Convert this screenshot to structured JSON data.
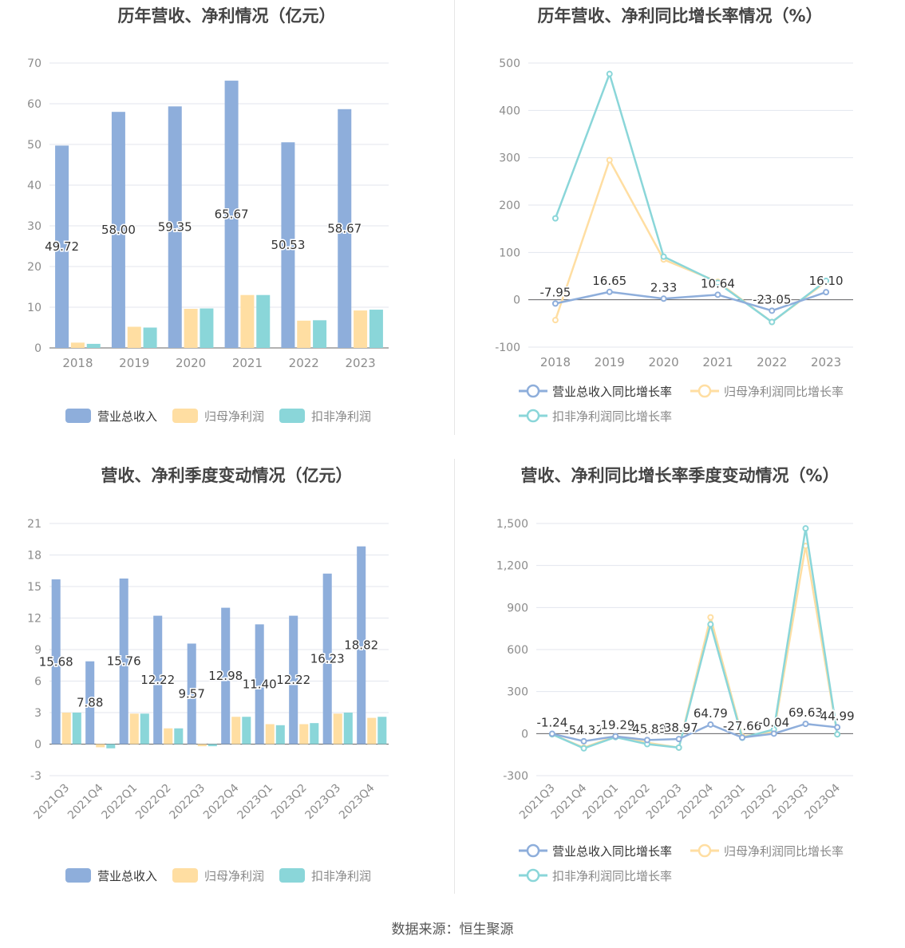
{
  "footer": {
    "source": "数据来源：恒生聚源"
  },
  "colors": {
    "revenue": "#8EAEDB",
    "net_profit": "#FFDEA2",
    "deducted_profit": "#8AD6D9"
  },
  "chart_data": [
    {
      "id": "annual_amount",
      "type": "bar",
      "title": "历年营收、净利情况（亿元）",
      "categories": [
        "2018",
        "2019",
        "2020",
        "2021",
        "2022",
        "2023"
      ],
      "ylim": [
        0,
        70
      ],
      "yticks": [
        0,
        10,
        20,
        30,
        40,
        50,
        60,
        70
      ],
      "label_series": 0,
      "series": [
        {
          "name": "营业总收入",
          "color": "#8EAEDB",
          "values": [
            49.72,
            58.0,
            59.35,
            65.67,
            50.53,
            58.67
          ]
        },
        {
          "name": "归母净利润",
          "color": "#FFDEA2",
          "values": [
            1.3,
            5.2,
            9.6,
            13.0,
            6.7,
            9.2
          ]
        },
        {
          "name": "扣非净利润",
          "color": "#8AD6D9",
          "values": [
            1.0,
            5.0,
            9.7,
            13.0,
            6.8,
            9.4
          ]
        }
      ],
      "legend_position": "bottom",
      "grid": true
    },
    {
      "id": "annual_growth",
      "type": "line",
      "title": "历年营收、净利同比增长率情况（%）",
      "categories": [
        "2018",
        "2019",
        "2020",
        "2021",
        "2022",
        "2023"
      ],
      "ylim": [
        -100,
        500
      ],
      "yticks": [
        -100,
        0,
        100,
        200,
        300,
        400,
        500
      ],
      "label_series": 0,
      "series": [
        {
          "name": "营业总收入同比增长率",
          "color": "#8EAEDB",
          "values": [
            -7.95,
            16.65,
            2.33,
            10.64,
            -23.05,
            16.1
          ]
        },
        {
          "name": "归母净利润同比增长率",
          "color": "#FFDEA2",
          "values": [
            -43,
            295,
            85,
            38,
            -47,
            38
          ]
        },
        {
          "name": "扣非净利润同比增长率",
          "color": "#8AD6D9",
          "values": [
            172,
            477,
            91,
            36,
            -47,
            40
          ]
        }
      ],
      "legend_position": "bottom",
      "grid": true
    },
    {
      "id": "quarterly_amount",
      "type": "bar",
      "title": "营收、净利季度变动情况（亿元）",
      "categories": [
        "2021Q3",
        "2021Q4",
        "2022Q1",
        "2022Q2",
        "2022Q3",
        "2022Q4",
        "2023Q1",
        "2023Q2",
        "2023Q3",
        "2023Q4"
      ],
      "ylim": [
        -3,
        21
      ],
      "yticks": [
        -3,
        0,
        3,
        6,
        9,
        12,
        15,
        18,
        21
      ],
      "label_series": 0,
      "series": [
        {
          "name": "营业总收入",
          "color": "#8EAEDB",
          "values": [
            15.68,
            7.88,
            15.76,
            12.22,
            9.57,
            12.98,
            11.4,
            12.22,
            16.23,
            18.82
          ]
        },
        {
          "name": "归母净利润",
          "color": "#FFDEA2",
          "values": [
            3.0,
            -0.3,
            2.9,
            1.5,
            -0.2,
            2.6,
            1.9,
            1.9,
            2.9,
            2.5
          ]
        },
        {
          "name": "扣非净利润",
          "color": "#8AD6D9",
          "values": [
            3.0,
            -0.4,
            2.9,
            1.5,
            -0.2,
            2.6,
            1.8,
            2.0,
            3.0,
            2.6
          ]
        }
      ],
      "legend_position": "bottom",
      "grid": true
    },
    {
      "id": "quarterly_growth",
      "type": "line",
      "title": "营收、净利同比增长率季度变动情况（%）",
      "categories": [
        "2021Q3",
        "2021Q4",
        "2022Q1",
        "2022Q2",
        "2022Q3",
        "2022Q4",
        "2023Q1",
        "2023Q2",
        "2023Q3",
        "2023Q4"
      ],
      "ylim": [
        -300,
        1500
      ],
      "yticks": [
        -300,
        0,
        300,
        600,
        900,
        1200,
        1500
      ],
      "label_series": 0,
      "series": [
        {
          "name": "营业总收入同比增长率",
          "color": "#8EAEDB",
          "values": [
            -1.24,
            -54.32,
            -19.29,
            -45.89,
            -38.97,
            64.79,
            -27.66,
            -0.04,
            69.63,
            44.99
          ]
        },
        {
          "name": "归母净利润同比增长率",
          "color": "#FFDEA2",
          "values": [
            -5,
            -100,
            -20,
            -65,
            -100,
            830,
            -20,
            10,
            1340,
            -5
          ]
        },
        {
          "name": "扣非净利润同比增长率",
          "color": "#8AD6D9",
          "values": [
            -5,
            -105,
            -25,
            -75,
            -100,
            780,
            -30,
            30,
            1465,
            -5
          ]
        }
      ],
      "legend_position": "bottom",
      "grid": true
    }
  ]
}
